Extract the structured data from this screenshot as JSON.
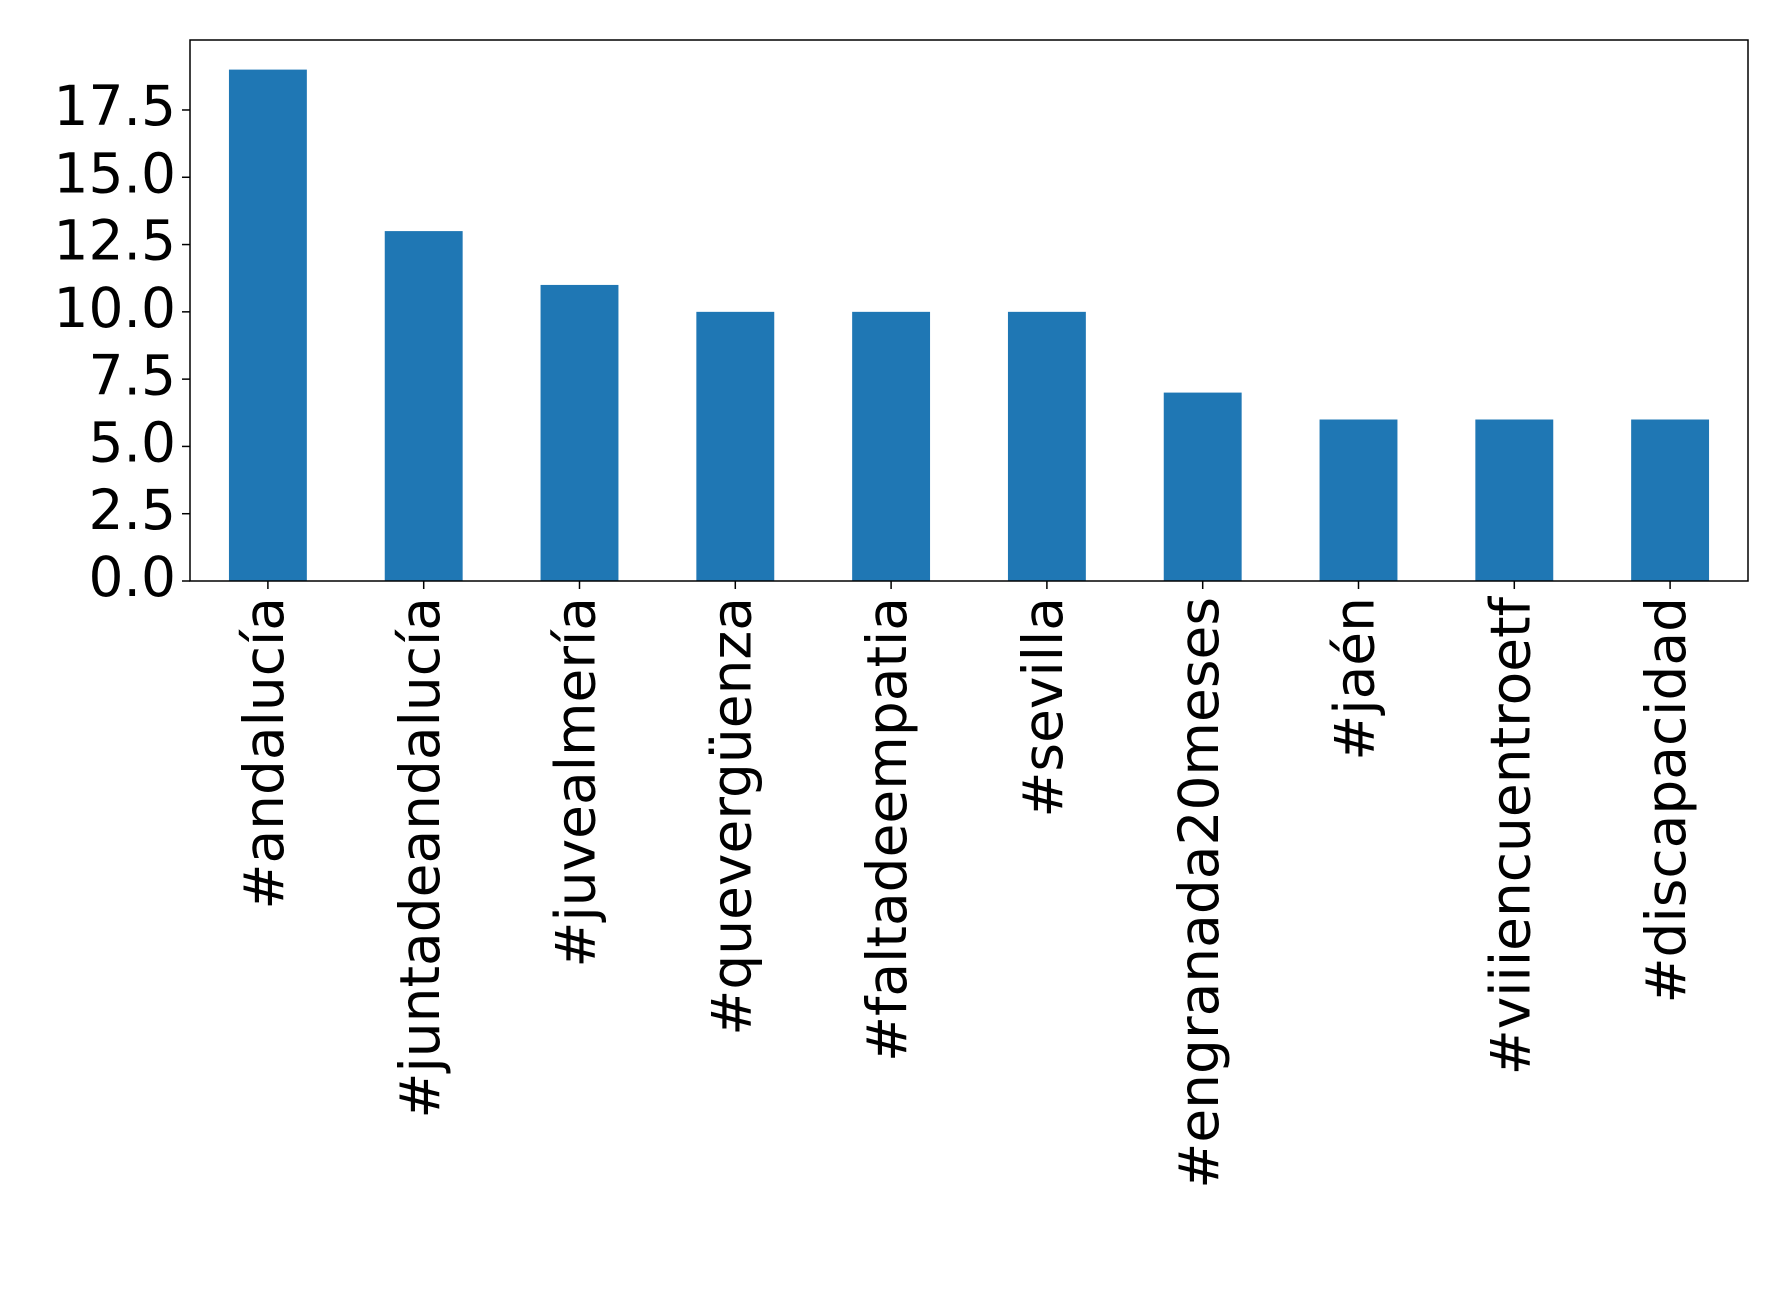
{
  "chart_data": {
    "type": "bar",
    "categories": [
      "#andalucía",
      "#juntadeandalucía",
      "#juvealmería",
      "#quevergüenza",
      "#faltadeempatia",
      "#sevilla",
      "#engranada20meses",
      "#jaén",
      "#viiiencuentroetf",
      "#discapacidad"
    ],
    "values": [
      19,
      13,
      11,
      10,
      10,
      10,
      7,
      6,
      6,
      6
    ],
    "color": "#1f77b4",
    "ylim": [
      0,
      20.1
    ],
    "yticks": [
      {
        "value": 0,
        "label": "0.0"
      },
      {
        "value": 2.5,
        "label": "2.5"
      },
      {
        "value": 5,
        "label": "5.0"
      },
      {
        "value": 7.5,
        "label": "7.5"
      },
      {
        "value": 10,
        "label": "10.0"
      },
      {
        "value": 12.5,
        "label": "12.5"
      },
      {
        "value": 15,
        "label": "15.0"
      },
      {
        "value": 17.5,
        "label": "17.5"
      }
    ],
    "grid": false
  }
}
